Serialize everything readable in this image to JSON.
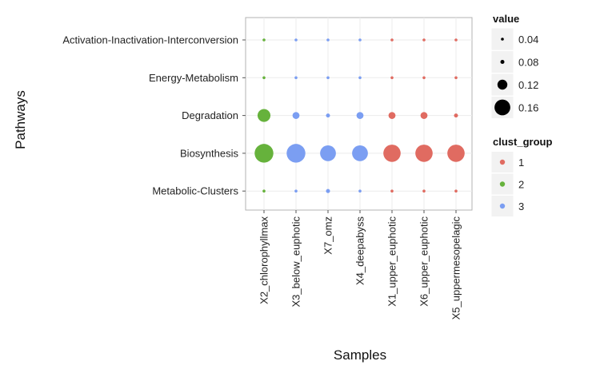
{
  "chart_data": {
    "type": "scatter",
    "subtype": "bubble",
    "xlabel": "Samples",
    "ylabel": "Pathways",
    "x": [
      "X2_chlorophyllmax",
      "X3_below_euphotic",
      "X7_omz",
      "X4_deepabyss",
      "X1_upper_euphotic",
      "X6_upper_euphotic",
      "X5_uppermesopelagic"
    ],
    "y": [
      "Activation-Inactivation-Interconversion",
      "Energy-Metabolism",
      "Degradation",
      "Biosynthesis",
      "Metabolic-Clusters"
    ],
    "cluster_by_sample": [
      2,
      3,
      3,
      3,
      1,
      1,
      1
    ],
    "values": [
      [
        0.035,
        0.05,
        0.06,
        0.06,
        0.03,
        0.05,
        0.07
      ],
      [
        0.035,
        0.025,
        0.025,
        0.025,
        0.03,
        0.03,
        0.025
      ],
      [
        0.14,
        0.1,
        0.08,
        0.1,
        0.1,
        0.1,
        0.08
      ],
      [
        0.18,
        0.18,
        0.16,
        0.16,
        0.17,
        0.17,
        0.17
      ],
      [
        0.07,
        0.07,
        0.08,
        0.07,
        0.07,
        0.06,
        0.07
      ]
    ],
    "size_legend": {
      "title": "value",
      "breaks": [
        0.04,
        0.08,
        0.12,
        0.16
      ],
      "labels": [
        "0.04",
        "0.08",
        "0.12",
        "0.16"
      ]
    },
    "color_legend": {
      "title": "clust_group",
      "groups": [
        "1",
        "2",
        "3"
      ]
    },
    "colors": {
      "1": "#e06b61",
      "2": "#66b23c",
      "3": "#7b9ef2"
    },
    "grid": true,
    "legend_position": "right"
  }
}
